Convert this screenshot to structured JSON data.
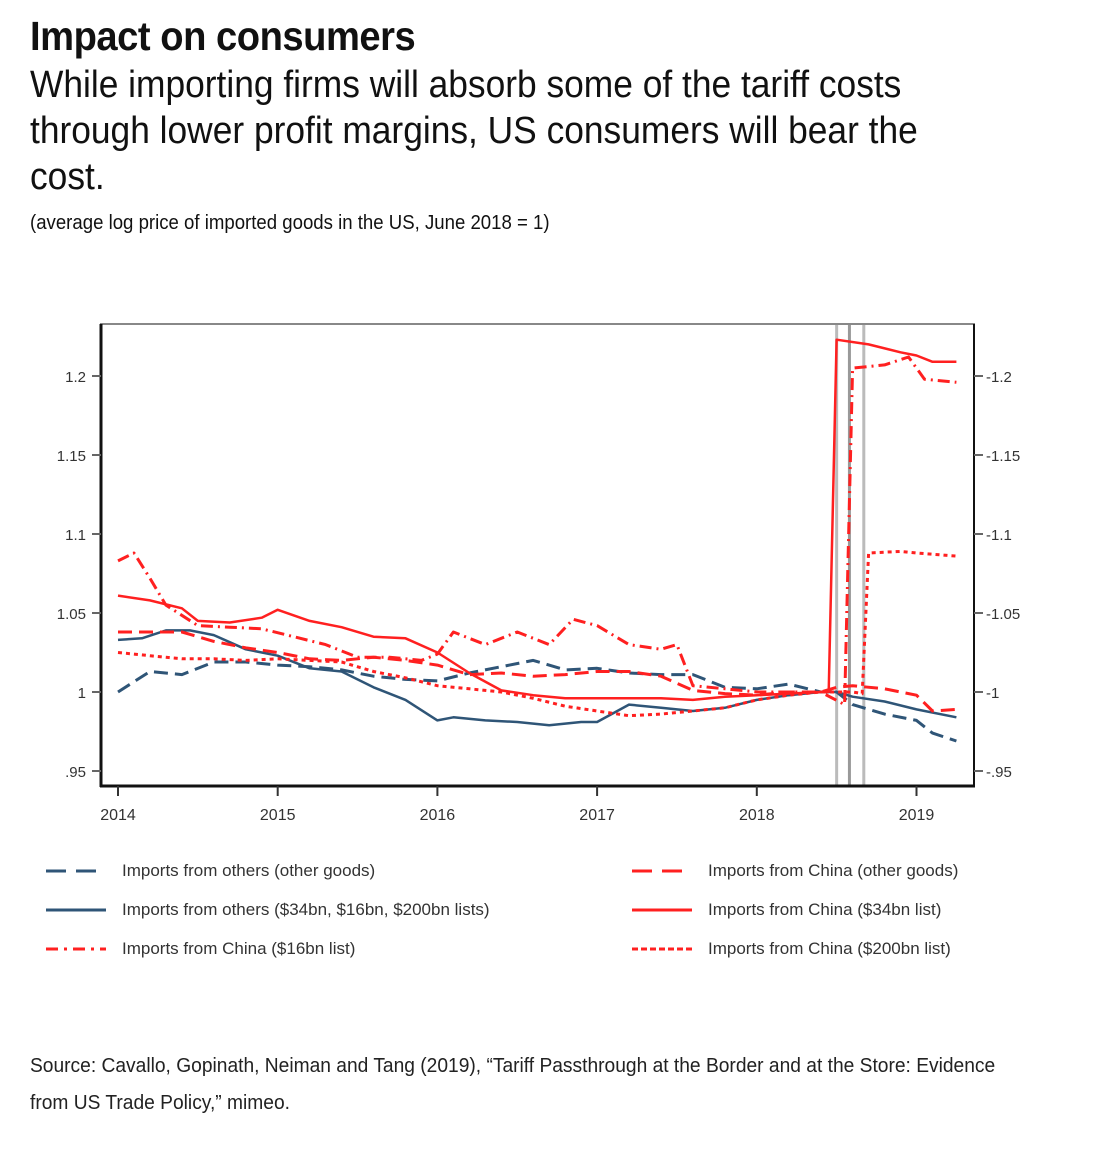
{
  "header": {
    "title": "Impact on consumers",
    "subtitle": "While importing firms will absorb some of the tariff costs through lower profit margins, US consumers will bear the cost.",
    "units": "(average log price of imported goods in the US, June 2018 = 1)"
  },
  "source": "Source: Cavallo, Gopinath, Neiman and Tang (2019), “Tariff Passthrough at the Border and at the Store: Evidence from US Trade Policy,” mimeo.",
  "colors": {
    "others": "#2f5577",
    "china": "#ff2020",
    "vline": "#bbbbbb",
    "frame": "#888888"
  },
  "chart_data": {
    "type": "line",
    "title": "",
    "xlabel": "",
    "ylabel": "",
    "xlim": [
      2014.0,
      2019.35
    ],
    "ylim": [
      0.937,
      1.234
    ],
    "x_ticks": [
      2014,
      2015,
      2016,
      2017,
      2018,
      2019
    ],
    "x_tick_labels": [
      "2014",
      "2015",
      "2016",
      "2017",
      "2018",
      "2019"
    ],
    "y_ticks": [
      0.95,
      1.0,
      1.05,
      1.1,
      1.15,
      1.2
    ],
    "y_tick_labels": [
      ".95",
      "1",
      "1.05",
      "1.1",
      "1.15",
      "1.2"
    ],
    "y_axes": [
      "left",
      "right"
    ],
    "grid": false,
    "legend_position": "bottom",
    "vertical_lines": [
      2018.5,
      2018.58,
      2018.67
    ],
    "series": [
      {
        "name": "Imports from others (other goods)",
        "color": "others",
        "style": "dash",
        "x": [
          2014.0,
          2014.2,
          2014.4,
          2014.6,
          2014.8,
          2015.0,
          2015.2,
          2015.4,
          2015.6,
          2015.8,
          2016.0,
          2016.2,
          2016.4,
          2016.6,
          2016.8,
          2017.0,
          2017.2,
          2017.4,
          2017.6,
          2017.8,
          2018.0,
          2018.2,
          2018.4,
          2018.5,
          2018.6,
          2018.8,
          2019.0,
          2019.1,
          2019.25
        ],
        "y": [
          1.0,
          1.013,
          1.011,
          1.019,
          1.019,
          1.017,
          1.016,
          1.014,
          1.01,
          1.008,
          1.007,
          1.012,
          1.016,
          1.02,
          1.014,
          1.015,
          1.012,
          1.011,
          1.011,
          1.003,
          1.002,
          1.005,
          1.0,
          1.0,
          0.992,
          0.986,
          0.982,
          0.974,
          0.969
        ]
      },
      {
        "name": "Imports from others ($34bn, $16bn, $200bn lists)",
        "color": "others",
        "style": "solid",
        "x": [
          2014.0,
          2014.15,
          2014.3,
          2014.45,
          2014.6,
          2014.8,
          2015.0,
          2015.2,
          2015.4,
          2015.6,
          2015.8,
          2016.0,
          2016.1,
          2016.3,
          2016.5,
          2016.7,
          2016.9,
          2017.0,
          2017.2,
          2017.4,
          2017.6,
          2017.8,
          2018.0,
          2018.2,
          2018.4,
          2018.5,
          2018.6,
          2018.8,
          2019.0,
          2019.25
        ],
        "y": [
          1.033,
          1.034,
          1.039,
          1.039,
          1.036,
          1.027,
          1.023,
          1.015,
          1.013,
          1.003,
          0.995,
          0.982,
          0.984,
          0.982,
          0.981,
          0.979,
          0.981,
          0.981,
          0.992,
          0.99,
          0.988,
          0.99,
          0.995,
          0.998,
          1.0,
          1.0,
          0.997,
          0.994,
          0.989,
          0.984
        ]
      },
      {
        "name": "Imports from China (other goods)",
        "color": "china",
        "style": "dash",
        "x": [
          2014.0,
          2014.2,
          2014.4,
          2014.6,
          2014.8,
          2015.0,
          2015.2,
          2015.4,
          2015.6,
          2015.8,
          2016.0,
          2016.2,
          2016.4,
          2016.6,
          2016.8,
          2017.0,
          2017.2,
          2017.4,
          2017.6,
          2017.8,
          2018.0,
          2018.2,
          2018.4,
          2018.5,
          2018.6,
          2018.8,
          2019.0,
          2019.1,
          2019.25
        ],
        "y": [
          1.038,
          1.038,
          1.038,
          1.032,
          1.028,
          1.025,
          1.021,
          1.02,
          1.022,
          1.02,
          1.017,
          1.011,
          1.012,
          1.01,
          1.011,
          1.013,
          1.013,
          1.01,
          1.001,
          0.999,
          0.998,
          1.0,
          1.0,
          1.003,
          1.004,
          1.002,
          0.998,
          0.988,
          0.989
        ]
      },
      {
        "name": "Imports from China ($34bn list)",
        "color": "china",
        "style": "solid",
        "x": [
          2014.0,
          2014.2,
          2014.4,
          2014.5,
          2014.7,
          2014.9,
          2015.0,
          2015.2,
          2015.4,
          2015.6,
          2015.8,
          2016.0,
          2016.2,
          2016.4,
          2016.6,
          2016.8,
          2017.0,
          2017.2,
          2017.4,
          2017.6,
          2017.8,
          2018.0,
          2018.2,
          2018.4,
          2018.45,
          2018.5,
          2018.7,
          2018.9,
          2019.0,
          2019.1,
          2019.25
        ],
        "y": [
          1.061,
          1.058,
          1.053,
          1.045,
          1.044,
          1.047,
          1.052,
          1.045,
          1.041,
          1.035,
          1.034,
          1.025,
          1.012,
          1.001,
          0.998,
          0.996,
          0.996,
          0.996,
          0.996,
          0.995,
          0.997,
          0.998,
          0.999,
          1.0,
          1.0,
          1.223,
          1.22,
          1.215,
          1.213,
          1.209,
          1.209
        ]
      },
      {
        "name": "Imports from China ($16bn list)",
        "color": "china",
        "style": "dashdot",
        "x": [
          2014.0,
          2014.1,
          2014.2,
          2014.3,
          2014.5,
          2014.7,
          2014.9,
          2015.1,
          2015.3,
          2015.5,
          2015.7,
          2015.9,
          2016.0,
          2016.1,
          2016.3,
          2016.5,
          2016.7,
          2016.85,
          2017.0,
          2017.2,
          2017.4,
          2017.5,
          2017.6,
          2017.8,
          2018.0,
          2018.2,
          2018.4,
          2018.55,
          2018.6,
          2018.8,
          2018.95,
          2019.05,
          2019.25
        ],
        "y": [
          1.083,
          1.088,
          1.072,
          1.055,
          1.042,
          1.041,
          1.04,
          1.035,
          1.03,
          1.022,
          1.022,
          1.02,
          1.024,
          1.038,
          1.03,
          1.038,
          1.03,
          1.046,
          1.042,
          1.03,
          1.027,
          1.03,
          1.004,
          1.002,
          1.0,
          1.0,
          1.0,
          0.992,
          1.205,
          1.207,
          1.212,
          1.198,
          1.196
        ]
      },
      {
        "name": "Imports from China ($200bn list)",
        "color": "china",
        "style": "dot",
        "x": [
          2014.0,
          2014.2,
          2014.4,
          2014.6,
          2014.8,
          2015.0,
          2015.2,
          2015.4,
          2015.6,
          2015.8,
          2016.0,
          2016.2,
          2016.4,
          2016.6,
          2016.8,
          2017.0,
          2017.2,
          2017.4,
          2017.6,
          2017.8,
          2018.0,
          2018.2,
          2018.4,
          2018.6,
          2018.66,
          2018.7,
          2018.9,
          2019.0,
          2019.25
        ],
        "y": [
          1.025,
          1.023,
          1.021,
          1.021,
          1.02,
          1.021,
          1.02,
          1.019,
          1.013,
          1.009,
          1.004,
          1.002,
          1.0,
          0.996,
          0.991,
          0.988,
          0.985,
          0.986,
          0.988,
          0.99,
          0.995,
          0.998,
          1.0,
          1.0,
          0.999,
          1.088,
          1.089,
          1.088,
          1.086
        ]
      }
    ]
  },
  "legend": [
    {
      "label": "Imports from others (other goods)",
      "color": "others",
      "style": "dash"
    },
    {
      "label": "Imports from China (other goods)",
      "color": "china",
      "style": "dash"
    },
    {
      "label": "Imports from others ($34bn, $16bn, $200bn lists)",
      "color": "others",
      "style": "solid"
    },
    {
      "label": "Imports from China ($34bn list)",
      "color": "china",
      "style": "solid"
    },
    {
      "label": "Imports from China ($16bn list)",
      "color": "china",
      "style": "dashdot"
    },
    {
      "label": "Imports from China ($200bn list)",
      "color": "china",
      "style": "dot"
    }
  ]
}
